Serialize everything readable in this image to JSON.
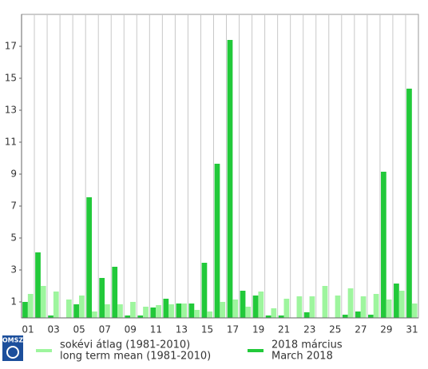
{
  "logo_text": "OMSZ",
  "chart_data": {
    "type": "bar",
    "categories": [
      "01",
      null,
      "03",
      null,
      "05",
      null,
      "07",
      null,
      "09",
      null,
      "11",
      null,
      "13",
      null,
      "15",
      null,
      "17",
      null,
      "19",
      null,
      "21",
      null,
      "23",
      null,
      "25",
      null,
      "27",
      null,
      "29",
      null,
      "31"
    ],
    "series": [
      {
        "name": [
          "2018 március",
          "March 2018"
        ],
        "color": "#22c93a",
        "values": [
          1.0,
          4.1,
          0.15,
          0,
          0.85,
          7.55,
          2.5,
          3.2,
          0.15,
          0.15,
          0.65,
          1.2,
          0.9,
          0.9,
          3.45,
          9.65,
          17.4,
          1.7,
          1.4,
          0.15,
          0.15,
          0,
          0.35,
          0,
          0,
          0.2,
          0.4,
          0.2,
          9.15,
          2.15,
          14.35
        ]
      },
      {
        "name": [
          "sokévi átlag (1981-2010)",
          "long term mean (1981-2010)"
        ],
        "color": "#9ef59e",
        "values": [
          1.5,
          2.0,
          1.65,
          1.15,
          1.4,
          0.4,
          0.85,
          0.85,
          1.0,
          0.7,
          0.8,
          0.85,
          0.9,
          0.5,
          0.4,
          1.0,
          1.15,
          0.7,
          1.65,
          0.6,
          1.2,
          1.35,
          1.35,
          2.0,
          1.4,
          1.85,
          1.35,
          1.5,
          1.15,
          1.7,
          0.9
        ]
      }
    ],
    "ylim": [
      0,
      19
    ],
    "yticks": [
      1,
      3,
      5,
      7,
      9,
      11,
      13,
      15,
      17
    ],
    "grid": true
  }
}
